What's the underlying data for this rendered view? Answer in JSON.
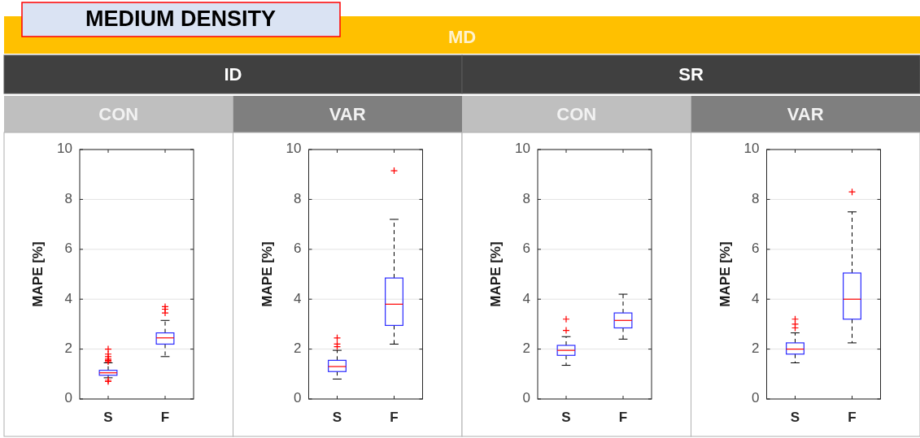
{
  "chart_data": [
    {
      "type": "other",
      "title": "MEDIUM DENSITY",
      "annotations": [
        "MD",
        "ID",
        "SR"
      ]
    },
    {
      "type": "box",
      "title": "CON",
      "ylabel": "MAPE [%]",
      "categories": [
        "S",
        "F"
      ],
      "ylim": [
        0,
        10
      ],
      "yticks": [
        0,
        2,
        4,
        6,
        8,
        10
      ],
      "grid": "y",
      "series": [
        {
          "color": "#2b2bff",
          "boxes": [
            {
              "low": 0.85,
              "q1": 0.95,
              "median": 1.05,
              "q3": 1.15,
              "high": 1.45,
              "outliers": [
                0.7,
                0.75,
                1.5,
                1.55,
                1.6,
                1.7,
                1.8,
                2.0
              ]
            },
            {
              "low": 1.7,
              "q1": 2.2,
              "median": 2.45,
              "q3": 2.65,
              "high": 3.15,
              "outliers": [
                3.45,
                3.6,
                3.7
              ]
            }
          ]
        }
      ]
    },
    {
      "type": "box",
      "title": "VAR",
      "ylabel": "MAPE [%]",
      "categories": [
        "S",
        "F"
      ],
      "ylim": [
        0,
        10
      ],
      "yticks": [
        0,
        2,
        4,
        6,
        8,
        10
      ],
      "grid": "y",
      "series": [
        {
          "color": "#2b2bff",
          "boxes": [
            {
              "low": 0.8,
              "q1": 1.1,
              "median": 1.3,
              "q3": 1.55,
              "high": 1.95,
              "outliers": [
                2.1,
                2.2,
                2.45
              ]
            },
            {
              "low": 2.2,
              "q1": 2.95,
              "median": 3.8,
              "q3": 4.85,
              "high": 7.2,
              "outliers": [
                9.15
              ]
            }
          ]
        }
      ]
    },
    {
      "type": "box",
      "title": "CON",
      "ylabel": "MAPE [%]",
      "categories": [
        "S",
        "F"
      ],
      "ylim": [
        0,
        10
      ],
      "yticks": [
        0,
        2,
        4,
        6,
        8,
        10
      ],
      "grid": "y",
      "series": [
        {
          "color": "#2b2bff",
          "boxes": [
            {
              "low": 1.35,
              "q1": 1.75,
              "median": 1.95,
              "q3": 2.15,
              "high": 2.5,
              "outliers": [
                2.75,
                3.2
              ]
            },
            {
              "low": 2.4,
              "q1": 2.85,
              "median": 3.15,
              "q3": 3.45,
              "high": 4.2
            }
          ]
        }
      ]
    },
    {
      "type": "box",
      "title": "VAR",
      "ylabel": "MAPE [%]",
      "categories": [
        "S",
        "F"
      ],
      "ylim": [
        0,
        10
      ],
      "yticks": [
        0,
        2,
        4,
        6,
        8,
        10
      ],
      "grid": "y",
      "series": [
        {
          "color": "#2b2bff",
          "boxes": [
            {
              "low": 1.45,
              "q1": 1.8,
              "median": 2.0,
              "q3": 2.25,
              "high": 2.65,
              "outliers": [
                2.85,
                3.0,
                3.2
              ]
            },
            {
              "low": 2.25,
              "q1": 3.2,
              "median": 4.0,
              "q3": 5.05,
              "high": 7.5,
              "outliers": [
                8.3
              ]
            }
          ]
        }
      ]
    }
  ]
}
